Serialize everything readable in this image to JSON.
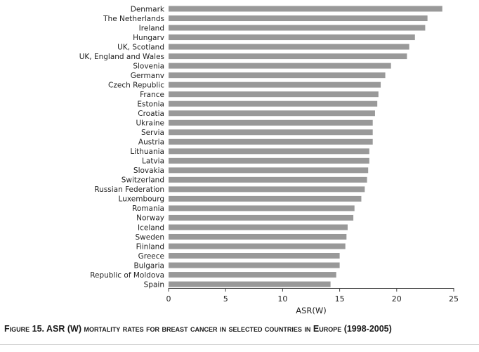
{
  "chart_data": {
    "type": "bar",
    "orientation": "horizontal",
    "categories": [
      "Denmark",
      "The Netherlands",
      "Ireland",
      "Hungarv",
      "UK, Scotland",
      "UK, England and Wales",
      "Slovenia",
      "Germanv",
      "Czech Republic",
      "France",
      "Estonia",
      "Croatia",
      "Ukraine",
      "Servia",
      "Austria",
      "Lithuania",
      "Latvia",
      "Slovakia",
      "Switzerland",
      "Russian Federation",
      "Luxembourg",
      "Romania",
      "Norway",
      "Iceland",
      "Sweden",
      "Fiinland",
      "Greece",
      "Bulgaria",
      "Republic of Moldova",
      "Spain"
    ],
    "values": [
      24.0,
      22.7,
      22.5,
      21.6,
      21.1,
      20.9,
      19.5,
      19.0,
      18.6,
      18.4,
      18.3,
      18.1,
      17.9,
      17.9,
      17.9,
      17.6,
      17.6,
      17.5,
      17.4,
      17.2,
      16.9,
      16.3,
      16.2,
      15.7,
      15.6,
      15.5,
      15.0,
      15.0,
      14.7,
      14.2
    ],
    "xlabel": "ASR(W)",
    "ylabel": "",
    "xlim": [
      0,
      25
    ],
    "xticks": [
      0,
      5,
      10,
      15,
      20,
      25
    ],
    "grid": false,
    "bar_color": "#999999"
  },
  "caption": "Figure 15. ASR (W) mortality rates for breast cancer in selected countries in Europe (1998-2005)"
}
